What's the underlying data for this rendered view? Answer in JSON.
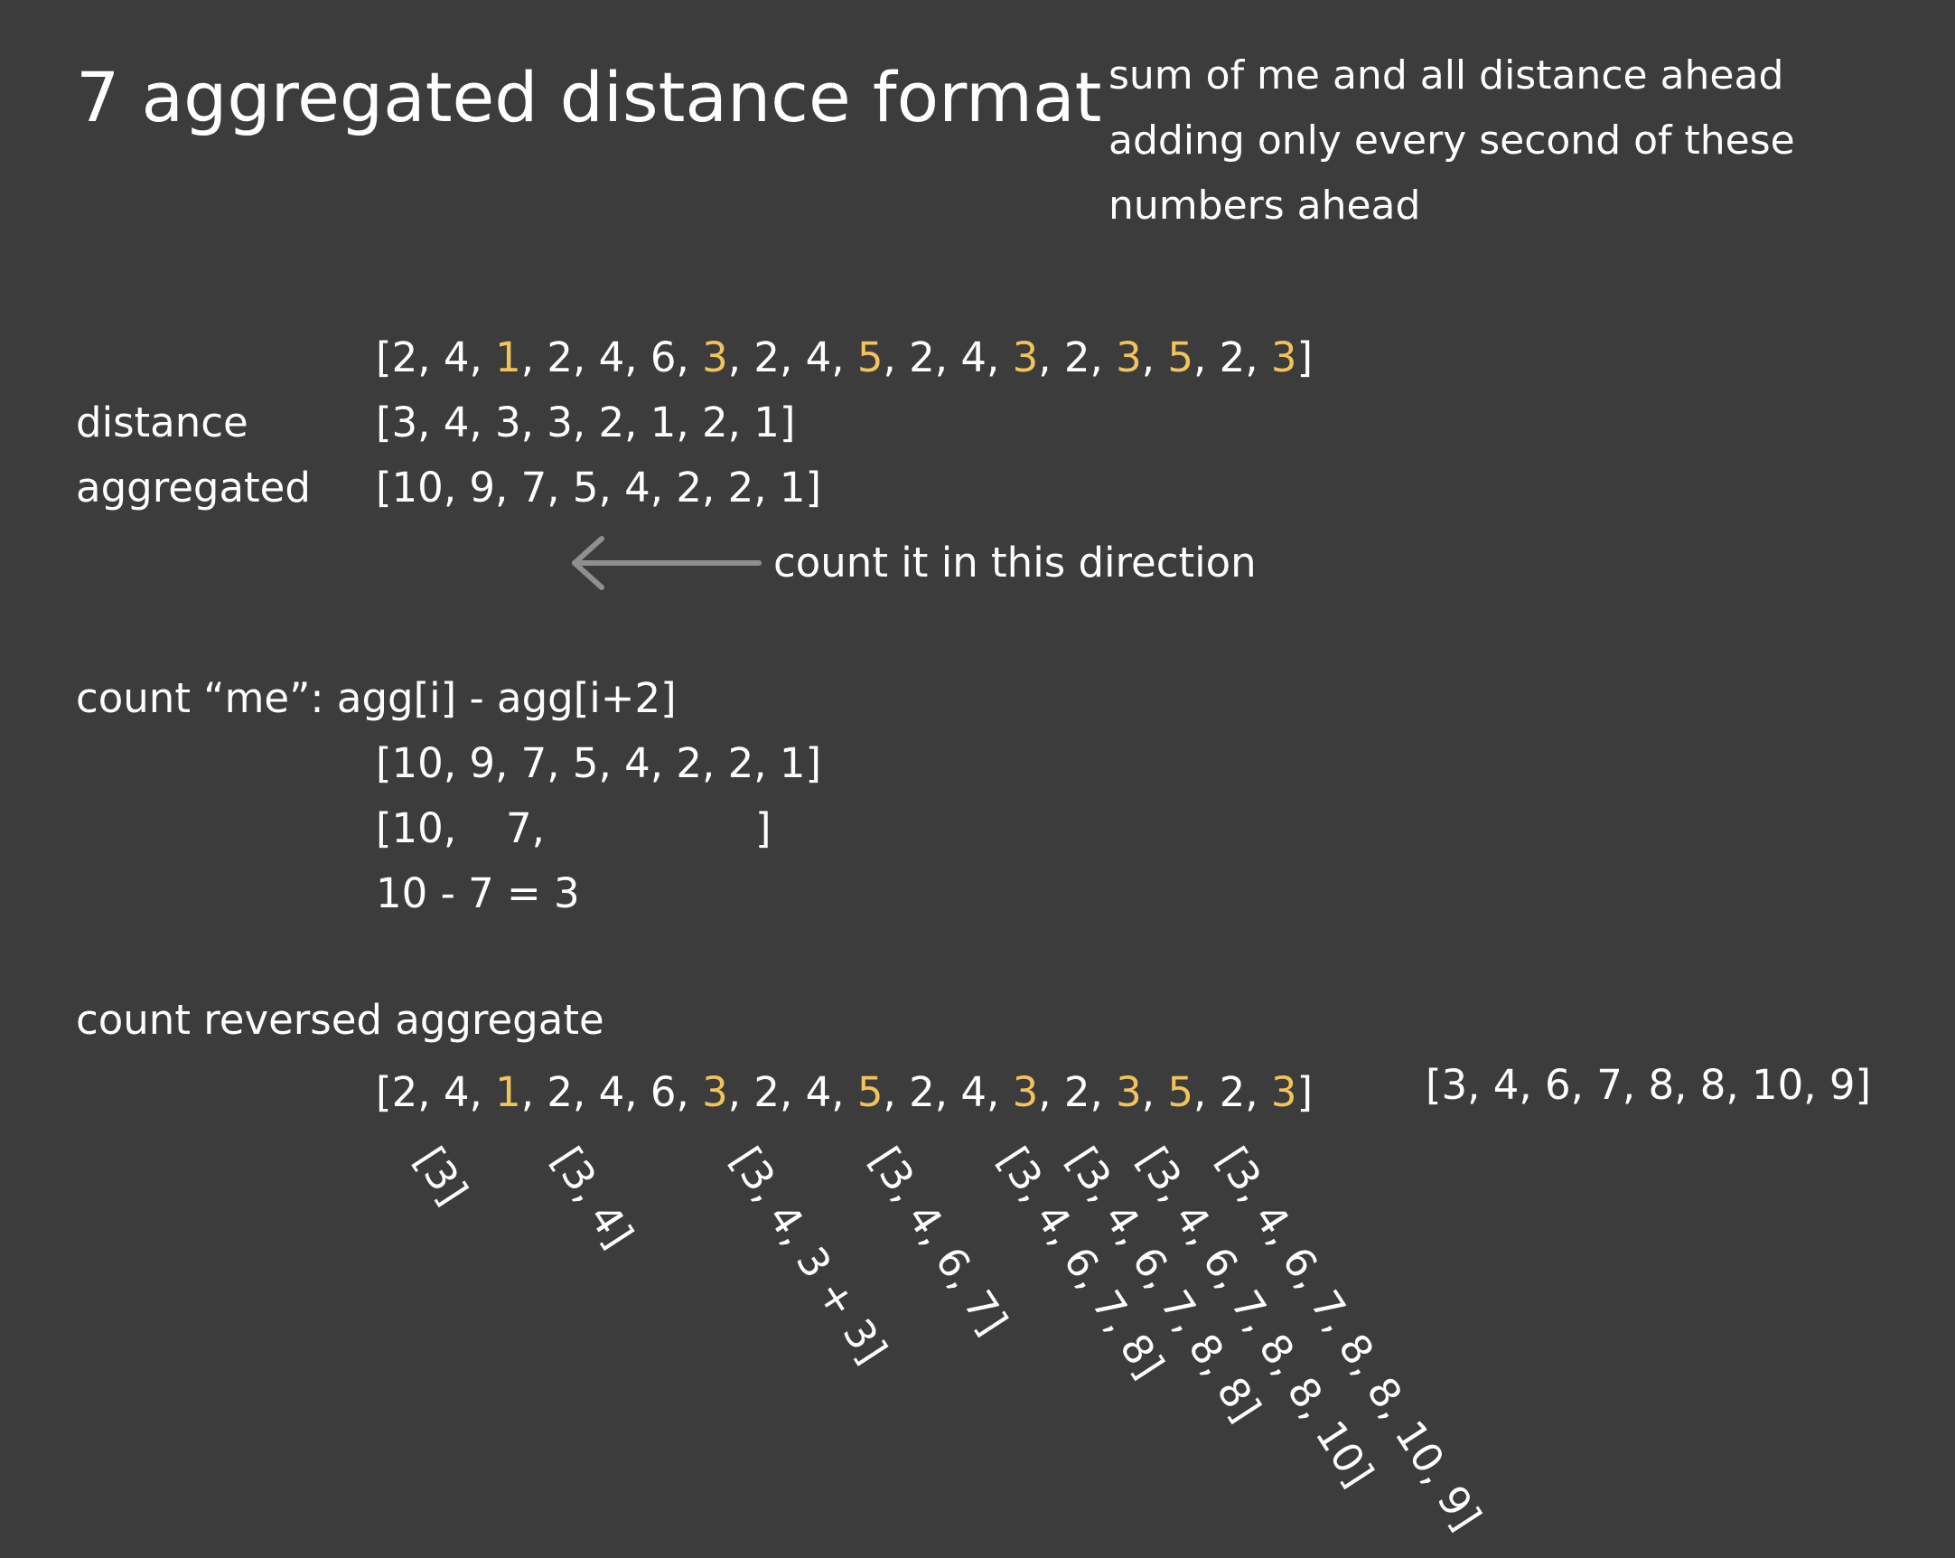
{
  "title": "7 aggregated distance format",
  "note": {
    "lines": [
      "sum of me and all distance ahead",
      "adding only every second of these",
      "numbers ahead"
    ]
  },
  "sequence": {
    "tokens": [
      "[",
      "2",
      ", ",
      "4",
      ", ",
      "1",
      ", ",
      "2",
      ", ",
      "4",
      ", ",
      "6",
      ", ",
      "3",
      ", ",
      "2",
      ", ",
      "4",
      ", ",
      "5",
      ", ",
      "2",
      ", ",
      "4",
      ", ",
      "3",
      ", ",
      "2",
      ", ",
      "3",
      ", ",
      "5",
      ", ",
      "2",
      ", ",
      "3",
      "]"
    ],
    "highlight_color": "#f2c35a"
  },
  "distance": {
    "label": "distance",
    "value": "[3, 4, 3, 3, 2, 1, 2, 1]"
  },
  "aggregated": {
    "label": "aggregated",
    "value": "[10, 9, 7, 5, 4, 2, 2, 1]"
  },
  "direction": {
    "text": "count it in this direction",
    "icon": "arrow-left-icon"
  },
  "count_me": {
    "heading": "count “me”: agg[i] - agg[i+2]",
    "line1": "[10, 9, 7, 5, 4, 2, 2, 1]",
    "line2_open": "[10,",
    "line2_mid": "7,",
    "line2_close": "]",
    "line3": "10 - 7 = 3"
  },
  "reversed": {
    "heading": "count reversed aggregate",
    "result": "[3, 4, 6, 7, 8, 8, 10, 9]",
    "steps": [
      "[3]",
      "[3, 4]",
      "[3, 4, 3 + 3]",
      "[3, 4, 6, 7]",
      "[3, 4, 6, 7, 8]",
      "[3, 4, 6, 7, 8, 8]",
      "[3, 4, 6, 7, 8, 8, 10]",
      "[3, 4, 6, 7, 8, 8, 10, 9]"
    ]
  }
}
